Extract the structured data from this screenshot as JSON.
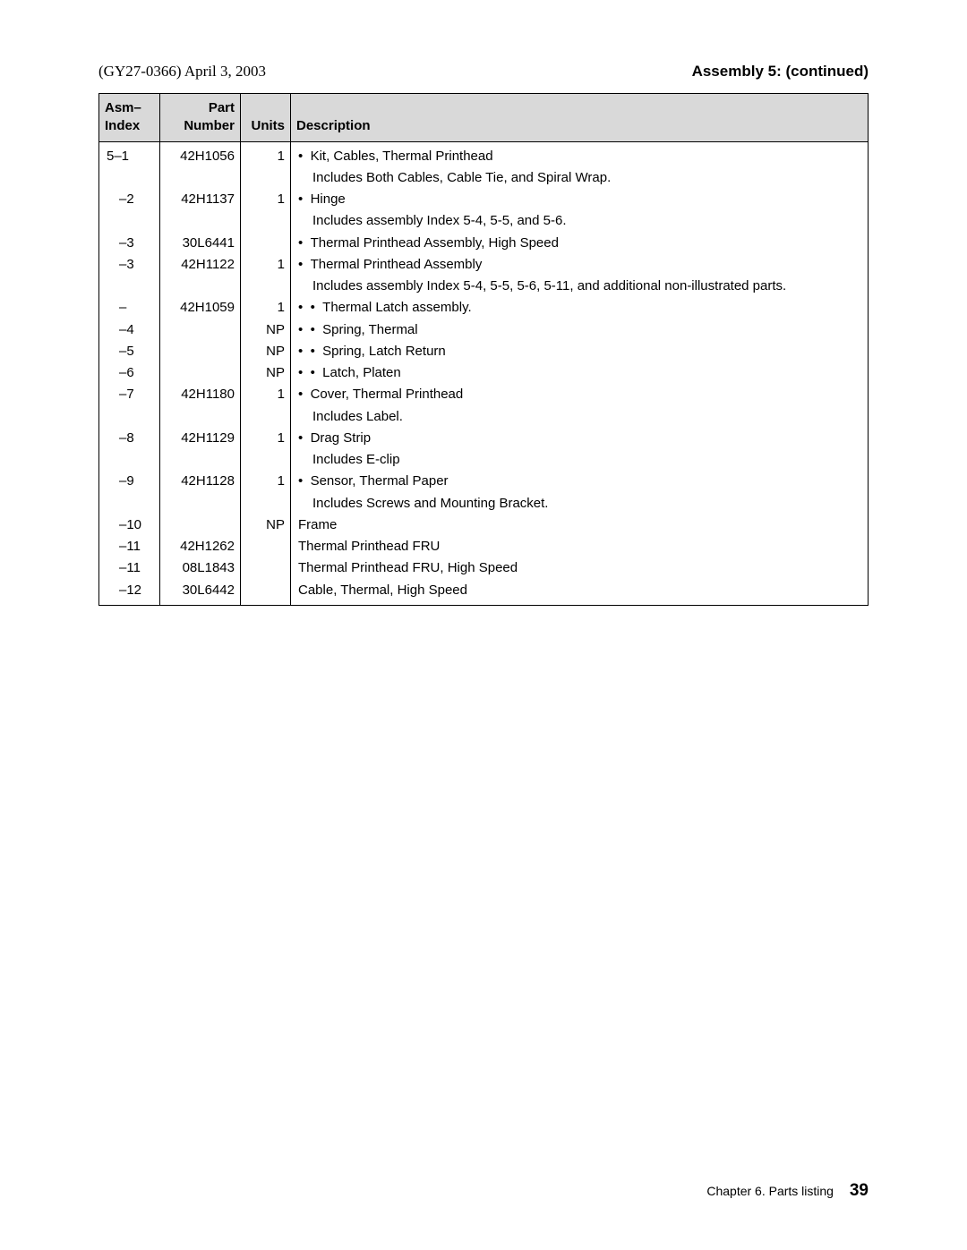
{
  "header": {
    "left": "(GY27-0366) April 3, 2003",
    "right": "Assembly 5: (continued)"
  },
  "table": {
    "columns": {
      "asm_index_l1": "Asm–",
      "asm_index_l2": "Index",
      "part_l1": "Part",
      "part_l2": "Number",
      "units": "Units",
      "description": "Description"
    },
    "rows": [
      {
        "idx": "5–1",
        "idx_indent": 0,
        "part": "42H1056",
        "units": "1",
        "desc": [
          {
            "level": 0,
            "bullet": 1,
            "text": "Kit, Cables, Thermal Printhead"
          },
          {
            "level": 1,
            "bullet": 0,
            "text": "Includes Both Cables, Cable Tie, and Spiral Wrap."
          }
        ]
      },
      {
        "idx": "–2",
        "idx_indent": 1,
        "part": "42H1137",
        "units": "1",
        "desc": [
          {
            "level": 0,
            "bullet": 1,
            "text": "Hinge"
          },
          {
            "level": 1,
            "bullet": 0,
            "text": "Includes assembly Index 5-4, 5-5, and 5-6."
          }
        ]
      },
      {
        "idx": "–3",
        "idx_indent": 1,
        "part": "30L6441",
        "units": "",
        "desc": [
          {
            "level": 0,
            "bullet": 1,
            "text": "Thermal Printhead Assembly, High Speed"
          }
        ]
      },
      {
        "idx": "–3",
        "idx_indent": 1,
        "part": "42H1122",
        "units": "1",
        "desc": [
          {
            "level": 0,
            "bullet": 1,
            "text": "Thermal Printhead Assembly"
          },
          {
            "level": 1,
            "bullet": 0,
            "text": "Includes assembly Index 5-4, 5-5, 5-6, 5-11, and additional non-illustrated parts."
          }
        ]
      },
      {
        "idx": "–",
        "idx_indent": 1,
        "part": "42H1059",
        "units": "1",
        "desc": [
          {
            "level": 0,
            "bullet": 2,
            "text": "Thermal Latch assembly."
          }
        ]
      },
      {
        "idx": "–4",
        "idx_indent": 1,
        "part": "",
        "units": "NP",
        "desc": [
          {
            "level": 0,
            "bullet": 2,
            "text": "Spring, Thermal"
          }
        ]
      },
      {
        "idx": "–5",
        "idx_indent": 1,
        "part": "",
        "units": "NP",
        "desc": [
          {
            "level": 0,
            "bullet": 2,
            "text": "Spring, Latch Return"
          }
        ]
      },
      {
        "idx": "–6",
        "idx_indent": 1,
        "part": "",
        "units": "NP",
        "desc": [
          {
            "level": 0,
            "bullet": 2,
            "text": "Latch, Platen"
          }
        ]
      },
      {
        "idx": "–7",
        "idx_indent": 1,
        "part": "42H1180",
        "units": "1",
        "desc": [
          {
            "level": 0,
            "bullet": 1,
            "text": "Cover, Thermal Printhead"
          },
          {
            "level": 1,
            "bullet": 0,
            "text": "Includes Label."
          }
        ]
      },
      {
        "idx": "–8",
        "idx_indent": 1,
        "part": "42H1129",
        "units": "1",
        "desc": [
          {
            "level": 0,
            "bullet": 1,
            "text": "Drag Strip"
          },
          {
            "level": 1,
            "bullet": 0,
            "text": "Includes E-clip"
          }
        ]
      },
      {
        "idx": "–9",
        "idx_indent": 1,
        "part": "42H1128",
        "units": "1",
        "desc": [
          {
            "level": 0,
            "bullet": 1,
            "text": "Sensor, Thermal Paper"
          },
          {
            "level": 1,
            "bullet": 0,
            "text": "Includes Screws and Mounting Bracket."
          }
        ]
      },
      {
        "idx": "–10",
        "idx_indent": 1,
        "part": "",
        "units": "NP",
        "desc": [
          {
            "level": 0,
            "bullet": 0,
            "text": "Frame"
          }
        ]
      },
      {
        "idx": "–11",
        "idx_indent": 1,
        "part": "42H1262",
        "units": "",
        "desc": [
          {
            "level": 0,
            "bullet": 0,
            "text": "Thermal Printhead FRU"
          }
        ]
      },
      {
        "idx": "–11",
        "idx_indent": 1,
        "part": "08L1843",
        "units": "",
        "desc": [
          {
            "level": 0,
            "bullet": 0,
            "text": "Thermal Printhead FRU, High Speed"
          }
        ]
      },
      {
        "idx": "–12",
        "idx_indent": 1,
        "part": "30L6442",
        "units": "",
        "desc": [
          {
            "level": 0,
            "bullet": 0,
            "text": "Cable, Thermal, High Speed"
          }
        ]
      }
    ]
  },
  "footer": {
    "chapter": "Chapter 6. Parts listing",
    "page": "39"
  }
}
